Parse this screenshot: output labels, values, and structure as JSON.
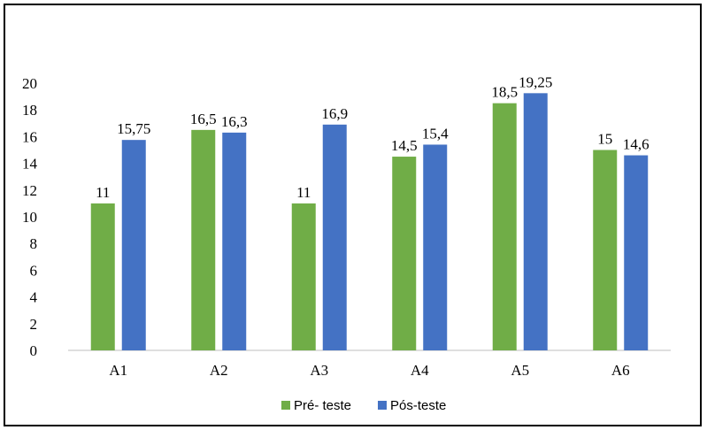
{
  "chart_data": {
    "type": "bar",
    "title": "",
    "xlabel": "",
    "ylabel": "",
    "categories": [
      "A1",
      "A2",
      "A3",
      "A4",
      "A5",
      "A6"
    ],
    "series": [
      {
        "name": "Pré- teste",
        "color": "#70ad47",
        "values": [
          11,
          16.5,
          11,
          14.5,
          18.5,
          15
        ],
        "labels": [
          "11",
          "16,5",
          "11",
          "14,5",
          "18,5",
          "15"
        ]
      },
      {
        "name": "Pós-teste",
        "color": "#4472c4",
        "values": [
          15.75,
          16.3,
          16.9,
          15.4,
          19.25,
          14.6
        ],
        "labels": [
          "15,75",
          "16,3",
          "16,9",
          "15,4",
          "19,25",
          "14,6"
        ]
      }
    ],
    "ylim": [
      0,
      20
    ],
    "yticks": [
      "0",
      "2",
      "4",
      "6",
      "8",
      "10",
      "12",
      "14",
      "16",
      "18",
      "20"
    ],
    "grid": false,
    "legend_position": "bottom"
  }
}
